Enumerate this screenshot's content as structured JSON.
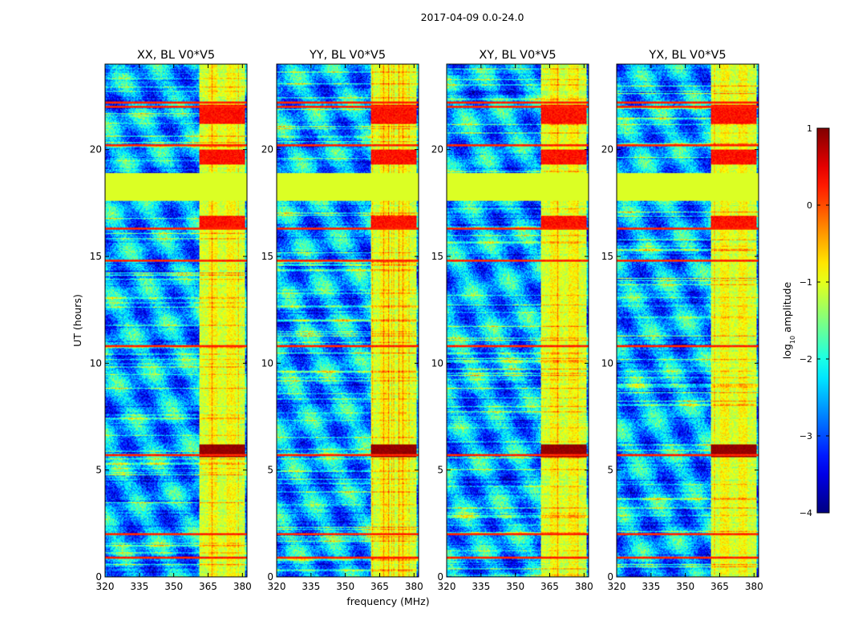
{
  "figure": {
    "suptitle": "2017-04-09 0.0-24.0",
    "xlabel": "frequency (MHz)",
    "ylabel": "UT (hours)"
  },
  "chart_data": {
    "type": "heatmap",
    "title": "2017-04-09 0.0-24.0",
    "xlabel": "frequency (MHz)",
    "ylabel": "UT (hours)",
    "xlim": [
      320,
      382
    ],
    "ylim": [
      0,
      24
    ],
    "xticks": [
      320,
      335,
      350,
      365,
      380
    ],
    "yticks": [
      0,
      5,
      10,
      15,
      20
    ],
    "panels": [
      {
        "title": "XX, BL V0*V5",
        "polarization": "XX",
        "baseline": "V0*V5"
      },
      {
        "title": "YY, BL V0*V5",
        "polarization": "YY",
        "baseline": "V0*V5"
      },
      {
        "title": "XY, BL V0*V5",
        "polarization": "XY",
        "baseline": "V0*V5"
      },
      {
        "title": "YX, BL V0*V5",
        "polarization": "YX",
        "baseline": "V0*V5"
      }
    ],
    "colormap": "jet",
    "colorbar": {
      "label": "log10 amplitude",
      "label_base": "log",
      "label_sub": "10",
      "label_rest": " amplitude",
      "range": [
        -4,
        1
      ],
      "ticks": [
        -4,
        -3,
        -2,
        -1,
        0,
        1
      ],
      "tick_labels": [
        "−4",
        "−3",
        "−2",
        "−1",
        "0",
        "1"
      ]
    },
    "features": {
      "rfi_frequency_band_mhz": [
        361,
        381
      ],
      "flagged_time_block_hours": [
        17.6,
        18.9
      ],
      "strong_burst_hours": [
        5.6,
        6.2
      ],
      "horizontal_rfi_hours": [
        0.9,
        2.0,
        5.7,
        10.8,
        14.8,
        16.3,
        20.2,
        22.0,
        22.2
      ]
    }
  }
}
